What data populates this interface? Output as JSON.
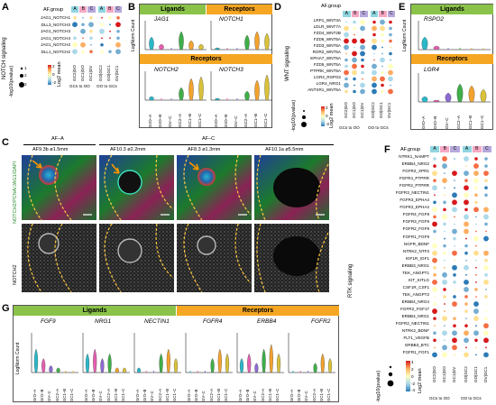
{
  "panels": {
    "A": {
      "letter": "A",
      "side_title": "NOTCH signaling",
      "group_label": "AF.group",
      "groups": [
        "A",
        "B",
        "C",
        "A",
        "B",
        "C"
      ],
      "rows": [
        "JAG1_NOTCH1",
        "DLL3_NOTCH3",
        "JAG1_NOTCH3",
        "JAG1_NOTCH4",
        "JAG1_NOTCH2",
        "DLL1_NOTCH2"
      ],
      "cols": [
        "GC2|GO",
        "GC1|GO",
        "GC1|GV",
        "GO|GC2",
        "GO|GC1",
        "GV|GC1"
      ],
      "sec_left": "GCs to OO",
      "sec_right": "OO to GCs",
      "pval_title": "-log10(pvalue)",
      "pval_ticks": [
        "1",
        "2",
        "3"
      ],
      "mean_title": "Log2 mean",
      "mean_ticks": [
        "2",
        "0",
        "-2"
      ]
    },
    "B": {
      "letter": "B",
      "ligands": "Ligands",
      "receptors": "Receptors",
      "genes": [
        "JAG1",
        "NOTCH1",
        "NOTCH2",
        "NOTCH3"
      ],
      "ylabel": "LogNorm Count",
      "xcats": [
        "GrO–A",
        "GrO–B",
        "GV–C",
        "GC2–A",
        "GC1–B",
        "GC1–C"
      ]
    },
    "C": {
      "letter": "C",
      "groupA": "AF–A",
      "groupC": "AF–C",
      "images": [
        "AF9.3b  ø1.5mm",
        "AF10.3  ø2.2mm",
        "AF8.3  ø1.3mm",
        "AF10.1a  ø5.5mm"
      ],
      "row1_label": "NOTCH2/PCNA/JAG1/DAPI",
      "row2_label": "NOTCH2"
    },
    "D": {
      "letter": "D",
      "side_title": "WNT signaling",
      "group_label": "AF.group",
      "groups": [
        "A",
        "B",
        "C",
        "A",
        "B",
        "C"
      ],
      "rows": [
        "LRP1_WNT3A",
        "LDLR_WNT7A",
        "FZD4_WNT2B",
        "FZD6_WNT5A",
        "FZD3_WNT5A",
        "ROR2_WNT5A",
        "EPHA7_WNT5A",
        "FZD5_WNT5A",
        "PTPRK_WNT5A",
        "LGR4_RSPO2",
        "LGR4_NRG1",
        "ANTXR1_WNT5A"
      ],
      "cols": [
        "GC2|GO",
        "GC1|GO",
        "GC1|GV",
        "GO|GC2",
        "GO|GC1",
        "GV|GC1"
      ],
      "sec_left": "GCs to OO",
      "sec_right": "OO to GCs",
      "pval_title": "-log10(pvalue)",
      "mean_title": "Log2 mean",
      "mean_ticks": [
        "2",
        "0",
        "-2"
      ]
    },
    "E": {
      "letter": "E",
      "ligands": "Ligands",
      "receptors": "Receptors",
      "genes": [
        "RSPO2",
        "LGR4"
      ],
      "ylabel": "LogNorm Count",
      "xcats": [
        "GrO–A",
        "GrO–B",
        "GV–C",
        "GC2–A",
        "GC1–B",
        "GC1–C"
      ]
    },
    "F": {
      "letter": "F",
      "side_title": "RTK signaling",
      "group_label": "AF.group",
      "groups": [
        "A",
        "B",
        "C",
        "A",
        "B",
        "C"
      ],
      "rows": [
        "NTRK1_NAMPT",
        "ERBB4_NRG2",
        "FGFR2_XPR1",
        "FGFR4_PTPRR",
        "FGFR2_PTPRR",
        "FGFR3_NECTIN1",
        "FGFR3_EPHA4",
        "FGFR2_EPHA4",
        "FGFR4_FGF9",
        "FGFR3_FGF9",
        "FGFR2_FGF9",
        "FGFR1_FGF9",
        "NGFR_BDNF",
        "NTRK2_NTF3",
        "IGF1R_IGF1",
        "ERBB3_NRG1",
        "TEK_ANGPT1",
        "KIT_KITLG",
        "CSF1R_CSF1",
        "TEK_ANGPT2",
        "ERBB4_NRG4",
        "FGFR2_FGF17",
        "ERBB4_NRG1",
        "FGFR2_NECTIN1",
        "NTRK2_BDNF",
        "FLT1_VEGFB",
        "ERBB3_BTC",
        "FGFR1_FGF1"
      ],
      "cols": [
        "GC2|GO",
        "GC1|GO",
        "GC1|GV",
        "GO|GC2",
        "GO|GC1",
        "GV|GC1"
      ],
      "sec_left": "GCs to OO",
      "sec_right": "OO to GCs",
      "pval_title": "-log10(pvalue)",
      "mean_title": "Log2 mean",
      "mean_ticks": [
        "4",
        "2",
        "0",
        "-2",
        "-4"
      ]
    },
    "G": {
      "letter": "G",
      "ligands": "Ligands",
      "receptors": "Receptors",
      "genes": [
        "FGF9",
        "NRG1",
        "NECTIN1",
        "FGFR4",
        "ERBB4",
        "FGFR2"
      ],
      "ylabel": "LogNorm Count",
      "xcats": [
        "GrO–A",
        "GrO–B",
        "GV–C",
        "GC2–A",
        "GC1–B",
        "GC1–C"
      ]
    }
  },
  "colors": {
    "ligand_header": "#8bc34a",
    "receptor_header": "#f5a623",
    "group_A": "#8fd6e0",
    "group_B": "#f7a8c4",
    "group_C": "#b7a8dc",
    "violin_cyan": "#29b8c9",
    "violin_pink": "#e45fb0",
    "violin_purple": "#8c6bd0",
    "violin_green": "#3fae49",
    "violin_orange": "#f2a22e",
    "violin_yellow": "#d9c13a"
  }
}
